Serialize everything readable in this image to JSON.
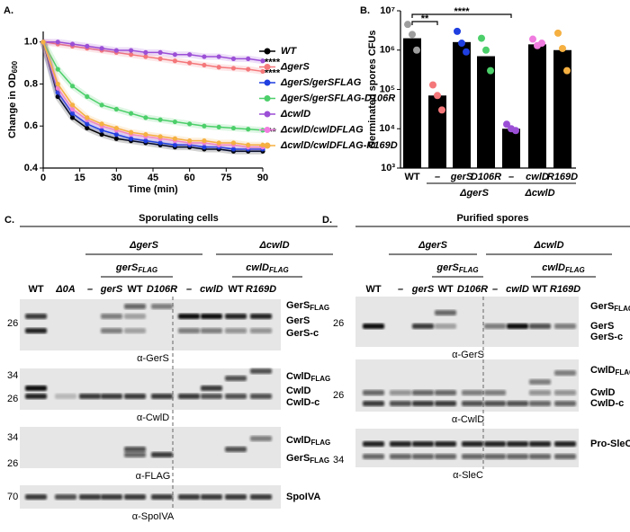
{
  "chart_data": [
    {
      "type": "line",
      "label": "A.",
      "y_label": "Change in OD",
      "y_label_sub": "600",
      "x_label": "Time (min)",
      "x": [
        0,
        6,
        12,
        18,
        24,
        30,
        36,
        42,
        48,
        54,
        60,
        66,
        72,
        78,
        84,
        90
      ],
      "xlim": [
        0,
        90
      ],
      "xticks": [
        0,
        15,
        30,
        45,
        60,
        75,
        90
      ],
      "ylim": [
        0.4,
        1.05
      ],
      "yticks": [
        0.4,
        0.6,
        0.8,
        {
          "value": 1.0,
          "label": "1.0"
        }
      ],
      "series": [
        {
          "name": "WT",
          "color": "#000000",
          "values": [
            1.0,
            0.74,
            0.64,
            0.59,
            0.56,
            0.54,
            0.53,
            0.52,
            0.51,
            0.5,
            0.5,
            0.49,
            0.49,
            0.48,
            0.48,
            0.48
          ]
        },
        {
          "name": "ΔgerS",
          "color": "#f4777a",
          "values": [
            1.0,
            0.99,
            0.98,
            0.97,
            0.96,
            0.95,
            0.94,
            0.93,
            0.92,
            0.91,
            0.9,
            0.89,
            0.88,
            0.875,
            0.87,
            0.86
          ],
          "annotation": "****"
        },
        {
          "name": "ΔgerS/gerSFLAG",
          "color": "#1f3fe0",
          "values": [
            1.0,
            0.76,
            0.66,
            0.61,
            0.58,
            0.56,
            0.54,
            0.53,
            0.52,
            0.51,
            0.51,
            0.5,
            0.5,
            0.49,
            0.49,
            0.49
          ]
        },
        {
          "name": "ΔgerS/gerSFLAG-D106R",
          "color": "#4ccf6a",
          "values": [
            1.0,
            0.87,
            0.79,
            0.74,
            0.7,
            0.68,
            0.66,
            0.64,
            0.63,
            0.62,
            0.61,
            0.6,
            0.595,
            0.59,
            0.585,
            0.58
          ],
          "annotation": "***"
        },
        {
          "name": "ΔcwlD",
          "color": "#9b4fd6",
          "values": [
            1.0,
            1.0,
            0.99,
            0.98,
            0.97,
            0.96,
            0.96,
            0.95,
            0.95,
            0.94,
            0.94,
            0.93,
            0.93,
            0.92,
            0.92,
            0.91
          ],
          "annotation": "****"
        },
        {
          "name": "ΔcwlD/cwlDFLAG",
          "color": "#f07ce0",
          "values": [
            1.0,
            0.78,
            0.68,
            0.63,
            0.6,
            0.58,
            0.56,
            0.55,
            0.54,
            0.53,
            0.52,
            0.52,
            0.51,
            0.51,
            0.5,
            0.5
          ]
        },
        {
          "name": "ΔcwlD/cwlDFLAG-R169D",
          "color": "#f5b041",
          "values": [
            1.0,
            0.8,
            0.7,
            0.64,
            0.61,
            0.59,
            0.57,
            0.56,
            0.55,
            0.54,
            0.53,
            0.53,
            0.52,
            0.52,
            0.51,
            0.51
          ]
        }
      ]
    },
    {
      "type": "bar",
      "label": "B.",
      "y_label": "Germinated spores CFUs",
      "log_scale": true,
      "categories": [
        "WT",
        "–",
        "gerS",
        "D106R",
        "–",
        "cwlD",
        "R169D"
      ],
      "values": [
        2000000,
        70000,
        1600000,
        700000,
        10000,
        1400000,
        1000000
      ],
      "colors": [
        "#9e9e9e",
        "#f4777a",
        "#1f3fe0",
        "#4ccf6a",
        "#9b4fd6",
        "#f07ce0",
        "#f5b041"
      ],
      "points": [
        [
          4500000,
          2500000,
          1000000
        ],
        [
          130000,
          70000,
          30000
        ],
        [
          3000000,
          1500000,
          900000
        ],
        [
          2000000,
          1000000,
          300000
        ],
        [
          13000,
          10000,
          9000
        ],
        [
          1900000,
          1300000,
          1500000
        ],
        [
          2700000,
          1100000,
          300000
        ]
      ],
      "ylim": [
        1000,
        10000000
      ],
      "yticks": [
        {
          "value": 1000,
          "label": "10³"
        },
        {
          "value": 10000,
          "label": "10⁴"
        },
        {
          "value": 100000,
          "label": "10⁵"
        },
        {
          "value": 1000000,
          "label": "10⁶"
        },
        {
          "value": 10000000,
          "label": "10⁷"
        }
      ],
      "groups": [
        "ΔgerS",
        "ΔcwlD"
      ],
      "significance": [
        "**",
        "****"
      ]
    }
  ],
  "panels": [
    {
      "label": "C.",
      "title": "Sporulating cells",
      "groups": [
        "ΔgerS",
        "ΔcwlD"
      ],
      "subgroups": [
        {
          "text": "gerS",
          "sub": "FLAG"
        },
        {
          "text": "cwlD",
          "sub": "FLAG"
        }
      ],
      "lanes": [
        "WT",
        "Δ0A",
        "–",
        "gerS",
        "WT",
        "D106R",
        "–",
        "cwlD",
        "WT",
        "R169D"
      ],
      "blots": [
        {
          "antibody": "α-GerS",
          "mw": [
            26
          ],
          "bands": [
            {
              "text": "GerS",
              "sub": "FLAG"
            },
            {
              "text": "GerS"
            },
            {
              "text": "GerS-c"
            }
          ]
        },
        {
          "antibody": "α-CwlD",
          "mw": [
            34,
            26
          ],
          "bands": [
            {
              "text": "CwlD",
              "sub": "FLAG"
            },
            {
              "text": "CwlD"
            },
            {
              "text": "CwlD-c"
            }
          ]
        },
        {
          "antibody": "α-FLAG",
          "mw": [
            34,
            26
          ],
          "bands": [
            {
              "text": "CwlD",
              "sub": "FLAG"
            },
            {
              "text": "GerS",
              "sub": "FLAG"
            }
          ]
        },
        {
          "antibody": "α-SpoIVA",
          "mw": [
            70
          ],
          "bands": [
            {
              "text": "SpoIVA"
            }
          ]
        }
      ]
    },
    {
      "label": "D.",
      "title": "Purified spores",
      "groups": [
        "ΔgerS",
        "ΔcwlD"
      ],
      "subgroups": [
        {
          "text": "gerS",
          "sub": "FLAG"
        },
        {
          "text": "cwlD",
          "sub": "FLAG"
        }
      ],
      "lanes": [
        "WT",
        "–",
        "gerS",
        "WT",
        "D106R",
        "–",
        "cwlD",
        "WT",
        "R169D"
      ],
      "blots": [
        {
          "antibody": "α-GerS",
          "mw": [
            26
          ],
          "bands": [
            {
              "text": "GerS",
              "sub": "FLAG"
            },
            {
              "text": "GerS"
            },
            {
              "text": "GerS-c"
            }
          ]
        },
        {
          "antibody": "α-CwlD",
          "mw": [
            26
          ],
          "bands": [
            {
              "text": "CwlD",
              "sub": "FLAG"
            },
            {
              "text": "CwlD"
            },
            {
              "text": "CwlD-c"
            }
          ]
        },
        {
          "antibody": "α-SleC",
          "mw": [
            34
          ],
          "bands": [
            {
              "text": "Pro-SleC"
            }
          ]
        }
      ]
    }
  ]
}
